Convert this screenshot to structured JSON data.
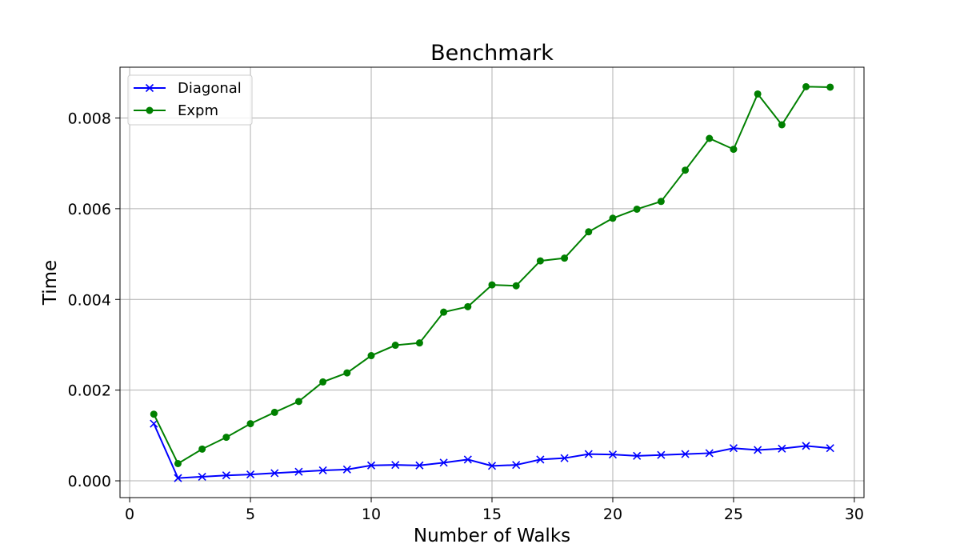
{
  "chart_data": {
    "type": "line",
    "title": "Benchmark",
    "xlabel": "Number of Walks",
    "ylabel": "Time",
    "xlim": [
      -0.4,
      30.4
    ],
    "ylim": [
      -0.00037,
      0.00912
    ],
    "xticks": [
      0,
      5,
      10,
      15,
      20,
      25,
      30
    ],
    "xtick_labels": [
      "0",
      "5",
      "10",
      "15",
      "20",
      "25",
      "30"
    ],
    "yticks": [
      0.0,
      0.002,
      0.004,
      0.006,
      0.008
    ],
    "ytick_labels": [
      "0.000",
      "0.002",
      "0.004",
      "0.006",
      "0.008"
    ],
    "grid": true,
    "legend_position": "upper left",
    "x": [
      1,
      2,
      3,
      4,
      5,
      6,
      7,
      8,
      9,
      10,
      11,
      12,
      13,
      14,
      15,
      16,
      17,
      18,
      19,
      20,
      21,
      22,
      23,
      24,
      25,
      26,
      27,
      28,
      29
    ],
    "series": [
      {
        "name": "Diagonal",
        "color": "#0000ff",
        "marker": "x",
        "values": [
          0.00126,
          6e-05,
          9e-05,
          0.00012,
          0.00014,
          0.00017,
          0.0002,
          0.00023,
          0.00025,
          0.00034,
          0.00035,
          0.00034,
          0.0004,
          0.00047,
          0.00033,
          0.00035,
          0.00047,
          0.0005,
          0.00059,
          0.00058,
          0.00055,
          0.00057,
          0.00059,
          0.00061,
          0.00072,
          0.00068,
          0.00071,
          0.00077,
          0.00072
        ]
      },
      {
        "name": "Expm",
        "color": "#008000",
        "marker": "o",
        "values": [
          0.00147,
          0.00038,
          0.0007,
          0.00096,
          0.00126,
          0.00151,
          0.00175,
          0.00218,
          0.00238,
          0.00276,
          0.00299,
          0.00304,
          0.00372,
          0.00384,
          0.00432,
          0.0043,
          0.00485,
          0.00491,
          0.00549,
          0.00579,
          0.00599,
          0.00616,
          0.00685,
          0.00755,
          0.00731,
          0.00853,
          0.00785,
          0.00869,
          0.00868
        ]
      }
    ]
  }
}
